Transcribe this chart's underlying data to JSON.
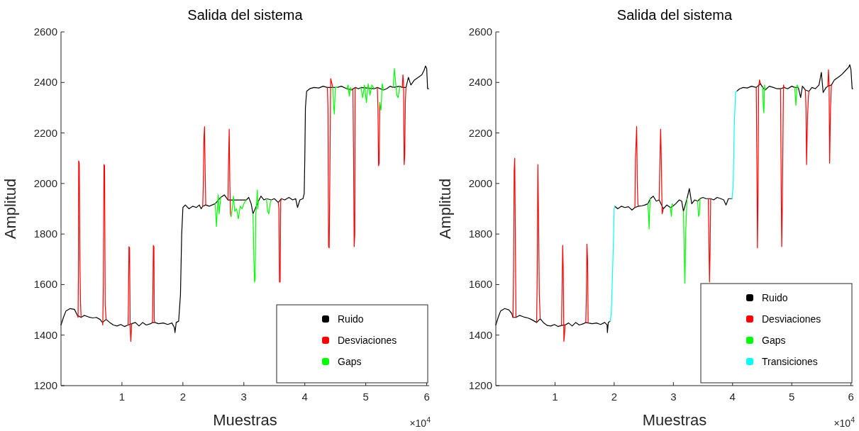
{
  "chart_data": [
    {
      "type": "line",
      "title": "Salida del sistema",
      "xlabel": "Muestras",
      "ylabel": "Amplitud",
      "annotations": [
        "×10$^{4}$"
      ],
      "xlim": [
        0,
        6.04
      ],
      "ylim": [
        1200,
        2600
      ],
      "xticks": [
        1,
        2,
        3,
        4,
        5,
        6
      ],
      "yticks": [
        1200,
        1400,
        1600,
        1800,
        2000,
        2200,
        2400,
        2600
      ],
      "legend": "bottom right",
      "series": [
        {
          "name": "Ruido",
          "color": "#000000",
          "x": [
            0,
            0.04,
            0.08,
            0.15,
            0.22,
            0.27,
            0.33,
            0.38,
            0.45,
            0.52,
            0.58,
            0.64,
            0.68,
            0.74,
            0.8,
            0.86,
            0.92,
            0.98,
            1.04,
            1.1,
            1.16,
            1.22,
            1.28,
            1.34,
            1.4,
            1.47,
            1.5,
            1.54,
            1.6,
            1.68,
            1.75,
            1.82,
            1.86,
            1.87,
            1.89,
            1.93,
            1.96,
            1.98,
            2,
            2.04,
            2.1,
            2.16,
            2.22,
            2.27,
            2.3,
            2.325,
            2.375,
            2.43,
            2.48,
            2.53,
            2.62,
            2.68,
            2.74,
            3.04,
            3.08,
            3.12,
            3.15,
            3.24,
            3.28,
            3.33,
            3.37,
            3.45,
            3.5,
            3.565,
            3.615,
            3.67,
            3.74,
            3.8,
            3.85,
            3.88,
            3.92,
            3.97,
            3.99,
            4,
            4.01,
            4.03,
            4.08,
            4.15,
            4.23,
            4.3,
            4.37,
            4.53,
            4.6,
            4.69,
            4.77,
            4.79,
            4.83,
            4.88,
            4.92,
            5.14,
            5.19,
            5.29,
            5.34,
            5.4,
            5.45,
            5.56,
            5.6,
            5.66,
            5.7,
            5.74,
            5.8,
            5.86,
            5.92,
            5.96,
            5.98,
            6,
            6.015,
            6.03
          ],
          "values": [
            1440,
            1470,
            1495,
            1505,
            1502,
            1478,
            1470,
            1478,
            1472,
            1468,
            1470,
            1462,
            1450,
            1462,
            1450,
            1440,
            1436,
            1442,
            1434,
            1440,
            1445,
            1450,
            1436,
            1450,
            1440,
            1445,
            1450,
            1450,
            1445,
            1448,
            1442,
            1448,
            1430,
            1410,
            1450,
            1455,
            1560,
            1800,
            1905,
            1915,
            1900,
            1910,
            1905,
            1915,
            1900,
            1910,
            1915,
            1910,
            1915,
            1920,
            1945,
            1955,
            1935,
            1935,
            1945,
            1920,
            1880,
            1930,
            1950,
            1935,
            1940,
            1935,
            1940,
            1925,
            1940,
            1935,
            1945,
            1935,
            1940,
            1905,
            1935,
            1940,
            1960,
            2100,
            2300,
            2365,
            2375,
            2380,
            2378,
            2385,
            2380,
            2380,
            2385,
            2375,
            2370,
            2375,
            2380,
            2375,
            2380,
            2375,
            2380,
            2370,
            2375,
            2385,
            2380,
            2385,
            2380,
            2380,
            2420,
            2390,
            2410,
            2420,
            2430,
            2450,
            2465,
            2455,
            2375,
            2375
          ]
        },
        {
          "name": "Desviaciones",
          "color": "#ff0000",
          "x": [
            0.27,
            0.28,
            0.285,
            0.29,
            0.3,
            0.31,
            0.32,
            0.33,
            0.335,
            0.68,
            0.685,
            0.695,
            0.705,
            0.715,
            0.725,
            0.74,
            0.745,
            1.1,
            1.105,
            1.115,
            1.125,
            1.135,
            1.145,
            1.16,
            1.165,
            1.5,
            1.505,
            1.515,
            1.525,
            1.53,
            1.54,
            1.545,
            2.325,
            2.335,
            2.345,
            2.355,
            2.365,
            2.375,
            2.38,
            2.74,
            2.75,
            2.76,
            2.77,
            2.78,
            2.79,
            2.795,
            3.565,
            3.575,
            3.585,
            3.595,
            3.605,
            3.615,
            3.62,
            4.37,
            4.38,
            4.39,
            4.4,
            4.41,
            4.425,
            4.44,
            4.46,
            4.465,
            4.79,
            4.8,
            4.81,
            4.82,
            4.825,
            4.83,
            4.835,
            5.19,
            5.2,
            5.21,
            5.22,
            5.23,
            5.235,
            5.6,
            5.61,
            5.62,
            5.63,
            5.64,
            5.65,
            5.66
          ],
          "values": [
            1478,
            1470,
            1640,
            2090,
            2080,
            1700,
            1530,
            1470,
            null,
            1450,
            1440,
            1600,
            2075,
            2070,
            1520,
            1462,
            null,
            1440,
            1500,
            1750,
            1745,
            1430,
            1375,
            1445,
            null,
            1450,
            1500,
            1755,
            1750,
            1460,
            1450,
            null,
            1910,
            2000,
            2180,
            2225,
            2050,
            1915,
            null,
            1935,
            2100,
            2215,
            2000,
            1880,
            1870,
            null,
            1925,
            1900,
            1610,
            1610,
            1930,
            1940,
            null,
            2380,
            2300,
            1750,
            1745,
            2000,
            2415,
            2400,
            2380,
            null,
            2375,
            2100,
            1750,
            1800,
            2370,
            2380,
            null,
            2380,
            2300,
            2070,
            2080,
            2320,
            null,
            2380,
            2430,
            2400,
            2075,
            2110,
            2330,
            2380
          ]
        },
        {
          "name": "Gaps",
          "color": "#00ff00",
          "x": [
            2.53,
            2.54,
            2.55,
            2.565,
            2.58,
            2.595,
            2.62,
            2.625,
            2.79,
            2.81,
            2.83,
            2.85,
            2.88,
            2.91,
            2.94,
            2.97,
            3,
            3.04,
            3.045,
            3.15,
            3.165,
            3.175,
            3.185,
            3.195,
            3.205,
            3.22,
            3.23,
            3.24,
            3.245,
            3.37,
            3.39,
            3.41,
            3.43,
            3.45,
            3.455,
            4.46,
            4.475,
            4.485,
            4.5,
            4.53,
            4.535,
            4.69,
            4.71,
            4.73,
            4.75,
            4.77,
            4.775,
            4.92,
            4.95,
            4.98,
            5.01,
            5.04,
            5.07,
            5.1,
            5.14,
            5.145,
            5.23,
            5.25,
            5.27,
            5.29,
            5.295,
            5.45,
            5.47,
            5.49,
            5.51,
            5.53,
            5.56
          ],
          "values": [
            1920,
            1880,
            1830,
            1900,
            1955,
            1880,
            1945,
            null,
            1870,
            1900,
            1950,
            1890,
            1900,
            1860,
            1910,
            1900,
            1920,
            1935,
            null,
            1880,
            1700,
            1610,
            1620,
            1880,
            1900,
            1975,
            1900,
            1930,
            null,
            1940,
            1890,
            1880,
            1920,
            1935,
            null,
            2380,
            2300,
            2275,
            2380,
            2380,
            null,
            2375,
            2390,
            2345,
            2380,
            2370,
            null,
            2380,
            2340,
            2390,
            2320,
            2395,
            2350,
            2390,
            2375,
            null,
            2320,
            2290,
            2395,
            2370,
            null,
            2380,
            2455,
            2400,
            2350,
            2340,
            2385
          ]
        }
      ]
    },
    {
      "type": "line",
      "title": "Salida del sistema",
      "xlabel": "Muestras",
      "ylabel": "Amplitud",
      "annotations": [
        "×10$^{4}$"
      ],
      "xlim": [
        0,
        6.04
      ],
      "ylim": [
        1200,
        2600
      ],
      "xticks": [
        1,
        2,
        3,
        4,
        5,
        6
      ],
      "yticks": [
        1200,
        1400,
        1600,
        1800,
        2000,
        2200,
        2400,
        2600
      ],
      "legend": "bottom right",
      "series": [
        {
          "name": "Ruido",
          "color": "#000000",
          "x": [
            0,
            0.04,
            0.08,
            0.15,
            0.22,
            0.27,
            0.29,
            0.34,
            0.4,
            0.47,
            0.54,
            0.6,
            0.69,
            0.75,
            0.81,
            0.87,
            0.93,
            0.99,
            1.05,
            1.11,
            1.17,
            1.23,
            1.29,
            1.35,
            1.41,
            1.48,
            1.52,
            1.56,
            1.63,
            1.7,
            1.77,
            1.84,
            1.88,
            1.885,
            1.9,
            1.93,
            1.935,
            2.01,
            2.06,
            2.12,
            2.18,
            2.24,
            2.3,
            2.35,
            2.41,
            2.47,
            2.52,
            2.57,
            2.61,
            2.66,
            2.71,
            2.76,
            2.83,
            2.89,
            2.95,
            2.99,
            3.04,
            3.1,
            3.14,
            3.17,
            3.23,
            3.27,
            3.31,
            3.36,
            3.41,
            3.45,
            3.5,
            3.55,
            3.59,
            3.63,
            3.68,
            3.74,
            3.8,
            3.85,
            3.89,
            3.93,
            3.99,
            3.995,
            4.07,
            4.12,
            4.18,
            4.25,
            4.32,
            4.4,
            4.47,
            4.51,
            4.55,
            4.62,
            4.69,
            4.75,
            4.81,
            4.87,
            4.93,
            5,
            5.05,
            5.11,
            5.15,
            5.18,
            5.23,
            5.29,
            5.34,
            5.4,
            5.46,
            5.5,
            5.53,
            5.58,
            5.61,
            5.67,
            5.72,
            5.78,
            5.84,
            5.9,
            5.96,
            5.98,
            6,
            6.02,
            6.03
          ],
          "values": [
            1440,
            1470,
            1495,
            1505,
            1500,
            1485,
            1470,
            1470,
            1478,
            1472,
            1468,
            1462,
            1450,
            1465,
            1448,
            1438,
            1436,
            1442,
            1434,
            1438,
            1440,
            1448,
            1436,
            1450,
            1440,
            1445,
            1450,
            1448,
            1445,
            1448,
            1442,
            1450,
            1440,
            1410,
            1450,
            1455,
            null,
            1910,
            1900,
            1910,
            1905,
            1908,
            1895,
            1905,
            1910,
            1912,
            1915,
            1920,
            1940,
            1950,
            1930,
            1935,
            1900,
            1915,
            1905,
            1910,
            1920,
            1935,
            1930,
            1890,
            1940,
            1980,
            1920,
            1935,
            1930,
            1940,
            1945,
            1940,
            1940,
            1940,
            1935,
            1945,
            1940,
            1935,
            1915,
            1940,
            1940,
            null,
            2365,
            2375,
            2380,
            2378,
            2385,
            2380,
            2395,
            2380,
            2370,
            2385,
            2380,
            2375,
            2375,
            2380,
            2375,
            2385,
            2380,
            2380,
            2340,
            2385,
            2370,
            2365,
            2380,
            2375,
            2390,
            2440,
            2360,
            2380,
            2385,
            2390,
            2410,
            2420,
            2430,
            2445,
            2460,
            2470,
            2450,
            2375,
            2375
          ]
        },
        {
          "name": "Desviaciones",
          "color": "#ff0000",
          "x": [
            0.29,
            0.3,
            0.31,
            0.32,
            0.33,
            0.34,
            0.345,
            0.69,
            0.7,
            0.71,
            0.72,
            0.735,
            0.75,
            0.755,
            1.11,
            1.12,
            1.13,
            1.14,
            1.15,
            1.16,
            1.17,
            1.175,
            1.52,
            1.53,
            1.54,
            1.55,
            1.56,
            1.565,
            2.35,
            2.36,
            2.38,
            2.39,
            2.4,
            2.41,
            2.415,
            2.76,
            2.77,
            2.785,
            2.795,
            2.81,
            2.83,
            2.835,
            3.59,
            3.6,
            3.61,
            3.62,
            3.63,
            3.635,
            4.4,
            4.41,
            4.42,
            4.43,
            4.44,
            4.455,
            4.47,
            4.475,
            4.81,
            4.82,
            4.83,
            4.84,
            4.86,
            4.87,
            4.875,
            5.23,
            5.24,
            5.25,
            5.265,
            5.28,
            5.29,
            5.295,
            5.61,
            5.62,
            5.63,
            5.64,
            5.655,
            5.67
          ],
          "values": [
            1470,
            1650,
            2050,
            2100,
            1800,
            1470,
            null,
            1450,
            1650,
            2075,
            1900,
            1560,
            1465,
            null,
            1438,
            1600,
            1755,
            1650,
            1375,
            1400,
            1440,
            null,
            1450,
            1560,
            1760,
            1700,
            1448,
            null,
            1905,
            2100,
            2225,
            2000,
            1920,
            1910,
            null,
            1935,
            2060,
            2215,
            2110,
            1880,
            1900,
            null,
            1940,
            1780,
            1610,
            1730,
            1940,
            null,
            2380,
            2100,
            1745,
            1950,
            2380,
            2410,
            2395,
            null,
            2375,
            2050,
            1750,
            1900,
            2390,
            2380,
            null,
            2370,
            2300,
            2075,
            2250,
            2340,
            2365,
            null,
            2385,
            2450,
            2400,
            2080,
            2300,
            2390
          ]
        },
        {
          "name": "Gaps",
          "color": "#00ff00",
          "x": [
            2.57,
            2.58,
            2.59,
            2.6,
            2.61,
            2.615,
            2.95,
            2.965,
            2.98,
            2.99,
            2.995,
            3.17,
            3.185,
            3.195,
            3.21,
            3.23,
            3.235,
            3.41,
            3.425,
            3.44,
            3.45,
            3.455,
            4.51,
            4.52,
            4.53,
            4.54,
            4.55,
            4.555,
            5.05,
            5.07,
            5.09,
            5.11
          ],
          "values": [
            1920,
            1880,
            1820,
            1900,
            1940,
            null,
            1905,
            1870,
            1920,
            1910,
            null,
            1890,
            1700,
            1605,
            1820,
            1940,
            null,
            1930,
            1870,
            1880,
            1940,
            null,
            2380,
            2300,
            2280,
            2390,
            2370,
            null,
            2380,
            2310,
            2390,
            2380
          ]
        },
        {
          "name": "Transiciones",
          "color": "#00ffff",
          "x": [
            1.93,
            1.95,
            1.97,
            1.99,
            2,
            2.01,
            2.015,
            3.99,
            4.01,
            4.03,
            4.05,
            4.07
          ],
          "values": [
            1455,
            1480,
            1630,
            1800,
            1900,
            1910,
            null,
            1940,
            1990,
            2240,
            2360,
            2365
          ]
        }
      ]
    }
  ]
}
